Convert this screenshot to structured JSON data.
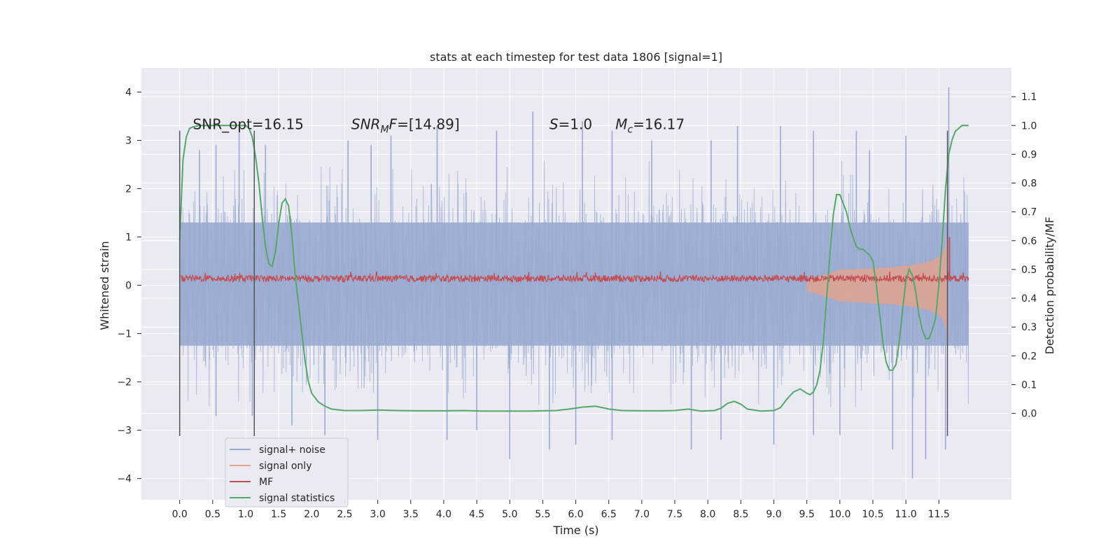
{
  "chart_data": {
    "type": "line",
    "title": "stats at each timestep for test data 1806 [signal=1]",
    "xlabel": "Time (s)",
    "ylabel": "Whitened strain",
    "y2label": "Detection probability/MF",
    "xlim": [
      -0.58,
      12.6
    ],
    "ylim": [
      -4.44,
      4.5
    ],
    "y2lim": [
      -0.3,
      1.2
    ],
    "x_ticks": [
      0.0,
      0.5,
      1.0,
      1.5,
      2.0,
      2.5,
      3.0,
      3.5,
      4.0,
      4.5,
      5.0,
      5.5,
      6.0,
      6.5,
      7.0,
      7.5,
      8.0,
      8.5,
      9.0,
      9.5,
      10.0,
      10.5,
      11.0,
      11.5
    ],
    "x_tick_labels": [
      "0.0",
      "0.5",
      "1.0",
      "1.5",
      "2.0",
      "2.5",
      "3.0",
      "3.5",
      "4.0",
      "4.5",
      "5.0",
      "5.5",
      "6.0",
      "6.5",
      "7.0",
      "7.5",
      "8.0",
      "8.5",
      "9.0",
      "9.5",
      "10.0",
      "10.5",
      "11.0",
      "11.5"
    ],
    "y_ticks": [
      4,
      3,
      2,
      1,
      0,
      -1,
      -2,
      -3,
      -4
    ],
    "y_tick_labels": [
      "4",
      "3",
      "2",
      "1",
      "0",
      "−1",
      "−2",
      "−3",
      "−4"
    ],
    "y2_ticks": [
      1.1,
      1.0,
      0.9,
      0.8,
      0.7,
      0.6,
      0.5,
      0.4,
      0.3,
      0.2,
      0.1,
      0.0
    ],
    "y2_tick_labels": [
      "1.1",
      "1.0",
      "0.9",
      "0.8",
      "0.7",
      "0.6",
      "0.5",
      "0.4",
      "0.3",
      "0.2",
      "0.1",
      "0.0"
    ],
    "grid": true,
    "legend_position": "lower-left",
    "annotations": [
      {
        "name": "snr-opt",
        "text": "SNR_opt=16.15",
        "x": 0.2,
        "y": 3.2
      },
      {
        "name": "snr-mf",
        "text": "[14.89]",
        "x": 2.6,
        "y": 3.2
      },
      {
        "name": "s-value",
        "text": "=1.0",
        "x": 5.6,
        "y": 3.2
      },
      {
        "name": "mc-value",
        "text": "=16.17",
        "x": 6.6,
        "y": 3.2
      }
    ],
    "vertical_markers": [
      0.0,
      1.13,
      11.63
    ],
    "series": [
      {
        "name": "signal+ noise",
        "color": "#9aaad0",
        "axis": "left",
        "style": "noise-band",
        "t_start": 0.0,
        "t_end": 11.95,
        "band_low": -1.25,
        "band_high": 1.3,
        "peak_times": [
          0.3,
          0.55,
          0.9,
          1.3,
          2.55,
          2.9,
          3.2,
          3.9,
          4.8,
          5.35,
          6.1,
          6.55,
          7.15,
          8.05,
          8.45,
          9.1,
          9.6,
          10.25,
          10.45,
          11.0,
          11.65
        ],
        "peak_values": [
          2.8,
          2.9,
          3.3,
          2.9,
          3.0,
          2.9,
          3.1,
          3.3,
          3.2,
          3.6,
          3.4,
          3.2,
          3.0,
          3.0,
          3.3,
          3.3,
          3.2,
          3.2,
          2.8,
          3.1,
          4.1
        ],
        "trough_times": [
          0.55,
          1.1,
          1.7,
          2.2,
          3.0,
          4.05,
          4.5,
          5.0,
          5.6,
          6.0,
          6.55,
          7.75,
          8.2,
          9.0,
          9.6,
          10.0,
          10.8,
          11.1,
          11.3,
          11.6
        ],
        "trough_values": [
          -2.7,
          -2.7,
          -2.9,
          -3.1,
          -3.2,
          -3.2,
          -3.0,
          -3.6,
          -3.4,
          -3.3,
          -3.2,
          -3.4,
          -3.2,
          -3.3,
          -3.1,
          -3.1,
          -3.4,
          -4.0,
          -3.6,
          -3.4
        ]
      },
      {
        "name": "signal only",
        "color": "#e8a287",
        "axis": "left",
        "style": "chirp",
        "t_start": 9.5,
        "t_merger": 11.63,
        "amplitude_end": 1.15
      },
      {
        "name": "MF",
        "color": "#c44e52",
        "axis": "left",
        "style": "mf-band",
        "t_start": 0.0,
        "t_end": 11.95,
        "band_low": 0.02,
        "band_high": 0.22,
        "peak_time": 11.63,
        "peak_value": 1.0
      },
      {
        "name": "signal statistics",
        "color": "#55a868",
        "axis": "right",
        "x": [
          0.0,
          0.05,
          0.1,
          0.15,
          0.2,
          0.3,
          0.4,
          0.5,
          0.6,
          0.7,
          0.8,
          0.9,
          1.0,
          1.05,
          1.1,
          1.15,
          1.2,
          1.25,
          1.3,
          1.35,
          1.4,
          1.45,
          1.5,
          1.55,
          1.6,
          1.65,
          1.7,
          1.75,
          1.8,
          1.85,
          1.9,
          1.95,
          2.0,
          2.1,
          2.2,
          2.3,
          2.5,
          2.75,
          3.0,
          3.3,
          3.6,
          4.0,
          4.3,
          4.6,
          5.0,
          5.3,
          5.7,
          5.9,
          6.1,
          6.3,
          6.5,
          6.7,
          7.0,
          7.3,
          7.5,
          7.7,
          7.9,
          8.1,
          8.2,
          8.3,
          8.4,
          8.5,
          8.6,
          8.8,
          9.0,
          9.1,
          9.2,
          9.3,
          9.4,
          9.5,
          9.55,
          9.6,
          9.65,
          9.7,
          9.75,
          9.8,
          9.85,
          9.9,
          9.95,
          10.0,
          10.1,
          10.15,
          10.2,
          10.25,
          10.3,
          10.35,
          10.4,
          10.45,
          10.5,
          10.55,
          10.6,
          10.65,
          10.7,
          10.75,
          10.8,
          10.85,
          10.9,
          10.95,
          11.0,
          11.05,
          11.1,
          11.15,
          11.2,
          11.25,
          11.3,
          11.35,
          11.4,
          11.45,
          11.5,
          11.55,
          11.6,
          11.65,
          11.7,
          11.75,
          11.8,
          11.85,
          11.9,
          11.95
        ],
        "y": [
          0.6,
          0.88,
          0.96,
          0.99,
          0.995,
          1.0,
          1.0,
          1.0,
          1.0,
          1.0,
          1.0,
          1.0,
          1.0,
          0.99,
          0.96,
          0.89,
          0.8,
          0.68,
          0.58,
          0.52,
          0.51,
          0.56,
          0.66,
          0.73,
          0.745,
          0.72,
          0.62,
          0.48,
          0.38,
          0.28,
          0.18,
          0.11,
          0.07,
          0.04,
          0.025,
          0.015,
          0.01,
          0.01,
          0.012,
          0.01,
          0.009,
          0.009,
          0.01,
          0.008,
          0.008,
          0.008,
          0.01,
          0.015,
          0.022,
          0.025,
          0.015,
          0.01,
          0.009,
          0.009,
          0.01,
          0.015,
          0.008,
          0.01,
          0.018,
          0.035,
          0.042,
          0.032,
          0.015,
          0.008,
          0.01,
          0.02,
          0.05,
          0.075,
          0.085,
          0.07,
          0.065,
          0.075,
          0.1,
          0.15,
          0.25,
          0.4,
          0.55,
          0.69,
          0.76,
          0.76,
          0.7,
          0.65,
          0.61,
          0.58,
          0.57,
          0.57,
          0.56,
          0.55,
          0.53,
          0.45,
          0.35,
          0.25,
          0.18,
          0.15,
          0.15,
          0.17,
          0.25,
          0.36,
          0.46,
          0.5,
          0.48,
          0.42,
          0.34,
          0.29,
          0.26,
          0.26,
          0.29,
          0.33,
          0.45,
          0.6,
          0.78,
          0.9,
          0.95,
          0.98,
          0.99,
          1.0,
          1.0,
          1.0
        ]
      }
    ]
  }
}
